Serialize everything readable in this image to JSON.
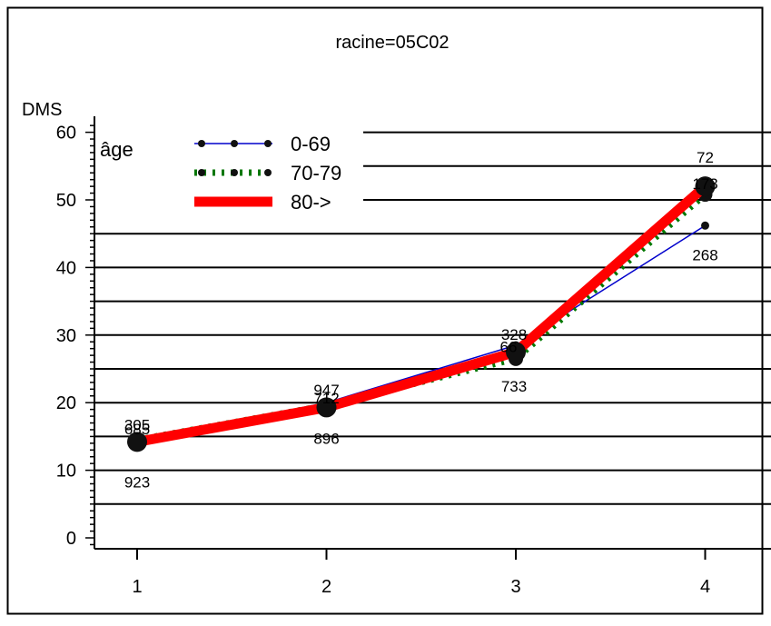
{
  "chart_data": {
    "type": "line",
    "title": "racine=05C02",
    "ylabel": "DMS",
    "xlabel": "",
    "x": [
      1,
      2,
      3,
      4
    ],
    "x_tick_labels": [
      "1",
      "2",
      "3",
      "4"
    ],
    "y_ticks": [
      0,
      10,
      20,
      30,
      40,
      50,
      60
    ],
    "ylim": [
      -1,
      61
    ],
    "grid": "horizontal lines every 5",
    "legend_title": "âge",
    "legend_position": "top-left",
    "series": [
      {
        "name": "0-69",
        "color": "#0000cc",
        "style": "thin solid, filled circle markers",
        "values": [
          14.3,
          20.0,
          28.5,
          46.2
        ],
        "labels": [
          "305",
          "947",
          "328",
          "268"
        ]
      },
      {
        "name": "70-79",
        "color": "#007700",
        "style": "thick dotted, filled circle markers",
        "values": [
          14.5,
          19.6,
          26.5,
          50.8
        ],
        "labels": [
          "685",
          "712",
          "733",
          "173"
        ]
      },
      {
        "name": "80->",
        "color": "#ff0000",
        "style": "very thick solid, filled circle markers",
        "values": [
          14.2,
          19.3,
          27.5,
          52.0
        ],
        "labels": [
          "923",
          "896",
          "66",
          "72"
        ]
      }
    ]
  }
}
